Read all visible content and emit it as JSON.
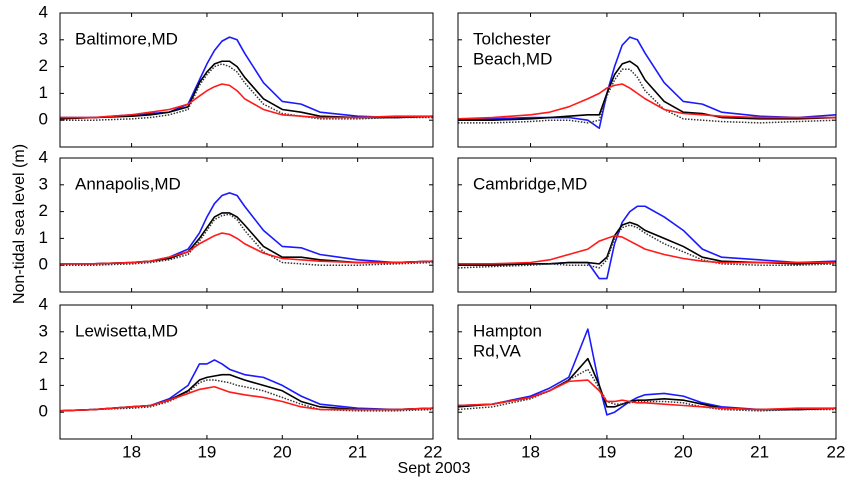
{
  "ylabel": "Non-tidal sea level (m)",
  "xlabel": "Sept 2003",
  "chart_data": [
    {
      "type": "line",
      "title": [
        "Baltimore,MD"
      ],
      "xlim": [
        17.05,
        22
      ],
      "ylim": [
        -1,
        4
      ],
      "xticks": [
        18,
        19,
        20,
        21,
        22
      ],
      "yticks": [
        0,
        1,
        2,
        3,
        4
      ],
      "x": [
        17.05,
        17.5,
        18,
        18.25,
        18.5,
        18.75,
        18.9,
        19,
        19.1,
        19.2,
        19.3,
        19.4,
        19.5,
        19.75,
        20,
        20.25,
        20.5,
        21,
        21.5,
        22
      ],
      "series": [
        {
          "color": "#1a1aff",
          "dash": "solid",
          "values": [
            0.1,
            0.1,
            0.2,
            0.25,
            0.3,
            0.6,
            1.5,
            2.1,
            2.6,
            2.95,
            3.1,
            3.0,
            2.5,
            1.4,
            0.7,
            0.6,
            0.3,
            0.15,
            0.1,
            0.15
          ]
        },
        {
          "color": "#000000",
          "dash": "solid",
          "values": [
            0.05,
            0.1,
            0.15,
            0.2,
            0.3,
            0.5,
            1.4,
            1.8,
            2.1,
            2.2,
            2.2,
            2.0,
            1.6,
            0.8,
            0.4,
            0.3,
            0.15,
            0.1,
            0.1,
            0.15
          ]
        },
        {
          "color": "#333333",
          "dash": "dotted",
          "values": [
            0,
            0,
            0.05,
            0.1,
            0.2,
            0.4,
            1.3,
            1.7,
            2.0,
            2.1,
            2.0,
            1.8,
            1.4,
            0.6,
            0.25,
            0.15,
            0.05,
            0.05,
            0.1,
            0.1
          ]
        },
        {
          "color": "#ff1a1a",
          "dash": "solid",
          "values": [
            0.1,
            0.1,
            0.2,
            0.3,
            0.4,
            0.6,
            0.9,
            1.1,
            1.25,
            1.35,
            1.3,
            1.1,
            0.8,
            0.4,
            0.2,
            0.15,
            0.1,
            0.1,
            0.15,
            0.15
          ]
        }
      ]
    },
    {
      "type": "line",
      "title": [
        "Tolchester",
        "Beach,MD"
      ],
      "xlim": [
        17.05,
        22
      ],
      "ylim": [
        -1,
        4
      ],
      "xticks": [
        18,
        19,
        20,
        21,
        22
      ],
      "yticks": [
        0,
        1,
        2,
        3,
        4
      ],
      "x": [
        17.05,
        17.5,
        18,
        18.25,
        18.5,
        18.75,
        18.9,
        19,
        19.1,
        19.2,
        19.3,
        19.4,
        19.5,
        19.75,
        20,
        20.25,
        20.5,
        21,
        21.5,
        22
      ],
      "series": [
        {
          "color": "#1a1aff",
          "dash": "solid",
          "values": [
            0.05,
            0.05,
            0.1,
            0.1,
            0.1,
            0,
            -0.3,
            1.0,
            2.0,
            2.8,
            3.1,
            3.0,
            2.5,
            1.4,
            0.7,
            0.6,
            0.3,
            0.15,
            0.1,
            0.2
          ]
        },
        {
          "color": "#000000",
          "dash": "solid",
          "values": [
            0,
            0,
            0.05,
            0.1,
            0.15,
            0.2,
            0.2,
            1.0,
            1.7,
            2.1,
            2.2,
            2.0,
            1.5,
            0.7,
            0.3,
            0.25,
            0.1,
            0.05,
            0.05,
            0.1
          ]
        },
        {
          "color": "#333333",
          "dash": "dotted",
          "values": [
            -0.1,
            -0.1,
            -0.05,
            0,
            0,
            -0.1,
            0,
            0.9,
            1.5,
            1.9,
            1.9,
            1.6,
            1.1,
            0.4,
            0.05,
            0,
            -0.05,
            -0.1,
            -0.05,
            0
          ]
        },
        {
          "color": "#ff1a1a",
          "dash": "solid",
          "values": [
            0.05,
            0.1,
            0.2,
            0.3,
            0.5,
            0.8,
            1.0,
            1.2,
            1.3,
            1.35,
            1.2,
            1.0,
            0.8,
            0.4,
            0.25,
            0.2,
            0.15,
            0.1,
            0.1,
            0.1
          ]
        }
      ]
    },
    {
      "type": "line",
      "title": [
        "Annapolis,MD"
      ],
      "xlim": [
        17.05,
        22
      ],
      "ylim": [
        -1,
        4
      ],
      "xticks": [
        18,
        19,
        20,
        21,
        22
      ],
      "yticks": [
        0,
        1,
        2,
        3,
        4
      ],
      "x": [
        17.05,
        17.5,
        18,
        18.25,
        18.5,
        18.75,
        18.9,
        19,
        19.1,
        19.2,
        19.3,
        19.4,
        19.5,
        19.75,
        20,
        20.25,
        20.5,
        21,
        21.5,
        22
      ],
      "series": [
        {
          "color": "#1a1aff",
          "dash": "solid",
          "values": [
            0.05,
            0.05,
            0.1,
            0.15,
            0.3,
            0.6,
            1.2,
            1.8,
            2.3,
            2.6,
            2.7,
            2.6,
            2.2,
            1.3,
            0.7,
            0.65,
            0.4,
            0.2,
            0.1,
            0.15
          ]
        },
        {
          "color": "#000000",
          "dash": "solid",
          "values": [
            0.05,
            0.05,
            0.1,
            0.15,
            0.25,
            0.5,
            1.0,
            1.4,
            1.8,
            1.95,
            1.95,
            1.8,
            1.5,
            0.7,
            0.3,
            0.3,
            0.2,
            0.1,
            0.1,
            0.15
          ]
        },
        {
          "color": "#333333",
          "dash": "dotted",
          "values": [
            0,
            0,
            0.05,
            0.1,
            0.2,
            0.4,
            0.9,
            1.3,
            1.7,
            1.85,
            1.9,
            1.7,
            1.3,
            0.5,
            0.1,
            0.05,
            0,
            0,
            0.05,
            0.1
          ]
        },
        {
          "color": "#ff1a1a",
          "dash": "solid",
          "values": [
            0.05,
            0.05,
            0.1,
            0.15,
            0.3,
            0.5,
            0.8,
            0.95,
            1.1,
            1.2,
            1.15,
            1.0,
            0.8,
            0.45,
            0.25,
            0.2,
            0.15,
            0.1,
            0.1,
            0.15
          ]
        }
      ]
    },
    {
      "type": "line",
      "title": [
        "Cambridge,MD"
      ],
      "xlim": [
        17.05,
        22
      ],
      "ylim": [
        -1,
        4
      ],
      "xticks": [
        18,
        19,
        20,
        21,
        22
      ],
      "yticks": [
        0,
        1,
        2,
        3,
        4
      ],
      "x": [
        17.05,
        17.5,
        18,
        18.25,
        18.5,
        18.75,
        18.9,
        19,
        19.1,
        19.2,
        19.3,
        19.4,
        19.5,
        19.75,
        20,
        20.25,
        20.5,
        21,
        21.5,
        22
      ],
      "series": [
        {
          "color": "#1a1aff",
          "dash": "solid",
          "values": [
            0.05,
            0.05,
            0.05,
            0.05,
            0.1,
            0.1,
            -0.5,
            -0.5,
            0.8,
            1.6,
            2.0,
            2.2,
            2.2,
            1.8,
            1.3,
            0.6,
            0.3,
            0.2,
            0.1,
            0.15
          ]
        },
        {
          "color": "#000000",
          "dash": "solid",
          "values": [
            0,
            0,
            0.05,
            0.05,
            0.1,
            0.1,
            0.05,
            0.3,
            1.1,
            1.5,
            1.6,
            1.5,
            1.3,
            1.0,
            0.7,
            0.3,
            0.15,
            0.1,
            0.05,
            0.1
          ]
        },
        {
          "color": "#333333",
          "dash": "dotted",
          "values": [
            -0.1,
            -0.05,
            0,
            0.05,
            0,
            0,
            -0.1,
            0.2,
            1.0,
            1.4,
            1.5,
            1.4,
            1.2,
            0.8,
            0.5,
            0.2,
            0.05,
            0,
            0,
            0.05
          ]
        },
        {
          "color": "#ff1a1a",
          "dash": "solid",
          "values": [
            0.05,
            0.05,
            0.1,
            0.2,
            0.4,
            0.6,
            0.9,
            1.0,
            1.1,
            1.05,
            0.9,
            0.75,
            0.6,
            0.4,
            0.25,
            0.15,
            0.1,
            0.1,
            0.1,
            0.1
          ]
        }
      ]
    },
    {
      "type": "line",
      "title": [
        "Lewisetta,MD"
      ],
      "xlim": [
        17.05,
        22
      ],
      "ylim": [
        -1,
        4
      ],
      "xticks": [
        18,
        19,
        20,
        21,
        22
      ],
      "yticks": [
        0,
        1,
        2,
        3,
        4
      ],
      "x": [
        17.05,
        17.5,
        18,
        18.25,
        18.5,
        18.75,
        18.9,
        19,
        19.1,
        19.2,
        19.3,
        19.4,
        19.5,
        19.75,
        20,
        20.25,
        20.5,
        21,
        21.5,
        22
      ],
      "series": [
        {
          "color": "#1a1aff",
          "dash": "solid",
          "values": [
            0.05,
            0.1,
            0.2,
            0.25,
            0.5,
            1.0,
            1.8,
            1.8,
            1.95,
            1.8,
            1.6,
            1.5,
            1.4,
            1.3,
            1.0,
            0.6,
            0.3,
            0.15,
            0.1,
            0.15
          ]
        },
        {
          "color": "#000000",
          "dash": "solid",
          "values": [
            0.05,
            0.1,
            0.2,
            0.25,
            0.45,
            0.8,
            1.2,
            1.3,
            1.35,
            1.4,
            1.4,
            1.3,
            1.2,
            1.0,
            0.8,
            0.4,
            0.2,
            0.1,
            0.1,
            0.15
          ]
        },
        {
          "color": "#333333",
          "dash": "dotted",
          "values": [
            0.05,
            0.1,
            0.15,
            0.2,
            0.4,
            0.75,
            1.1,
            1.2,
            1.2,
            1.15,
            1.1,
            1.0,
            0.95,
            0.8,
            0.55,
            0.3,
            0.1,
            0.05,
            0.05,
            0.1
          ]
        },
        {
          "color": "#ff1a1a",
          "dash": "solid",
          "values": [
            0.05,
            0.1,
            0.2,
            0.25,
            0.45,
            0.7,
            0.85,
            0.9,
            0.95,
            0.85,
            0.75,
            0.7,
            0.65,
            0.55,
            0.4,
            0.2,
            0.1,
            0.1,
            0.1,
            0.15
          ]
        }
      ]
    },
    {
      "type": "line",
      "title": [
        "Hampton",
        "Rd,VA"
      ],
      "xlim": [
        17.05,
        22
      ],
      "ylim": [
        -1,
        4
      ],
      "xticks": [
        18,
        19,
        20,
        21,
        22
      ],
      "yticks": [
        0,
        1,
        2,
        3,
        4
      ],
      "x": [
        17.05,
        17.5,
        18,
        18.25,
        18.5,
        18.75,
        18.9,
        19,
        19.1,
        19.2,
        19.3,
        19.4,
        19.5,
        19.75,
        20,
        20.25,
        20.5,
        21,
        21.5,
        22
      ],
      "series": [
        {
          "color": "#1a1aff",
          "dash": "solid",
          "values": [
            0.25,
            0.3,
            0.6,
            0.9,
            1.3,
            3.1,
            1.0,
            -0.1,
            0.0,
            0.2,
            0.4,
            0.55,
            0.65,
            0.7,
            0.6,
            0.35,
            0.2,
            0.1,
            0.1,
            0.15
          ]
        },
        {
          "color": "#000000",
          "dash": "solid",
          "values": [
            0.2,
            0.3,
            0.55,
            0.8,
            1.2,
            2.0,
            1.0,
            0.2,
            0.2,
            0.3,
            0.4,
            0.45,
            0.45,
            0.5,
            0.45,
            0.3,
            0.15,
            0.1,
            0.1,
            0.15
          ]
        },
        {
          "color": "#333333",
          "dash": "dotted",
          "values": [
            0.1,
            0.2,
            0.5,
            0.8,
            1.2,
            1.6,
            0.9,
            0.4,
            0.3,
            0.3,
            0.35,
            0.4,
            0.4,
            0.4,
            0.35,
            0.2,
            0.1,
            0.05,
            0.1,
            0.1
          ]
        },
        {
          "color": "#ff1a1a",
          "dash": "solid",
          "values": [
            0.25,
            0.3,
            0.55,
            0.8,
            1.15,
            1.2,
            0.8,
            0.4,
            0.4,
            0.45,
            0.4,
            0.35,
            0.35,
            0.3,
            0.25,
            0.2,
            0.15,
            0.1,
            0.15,
            0.15
          ]
        }
      ]
    }
  ]
}
